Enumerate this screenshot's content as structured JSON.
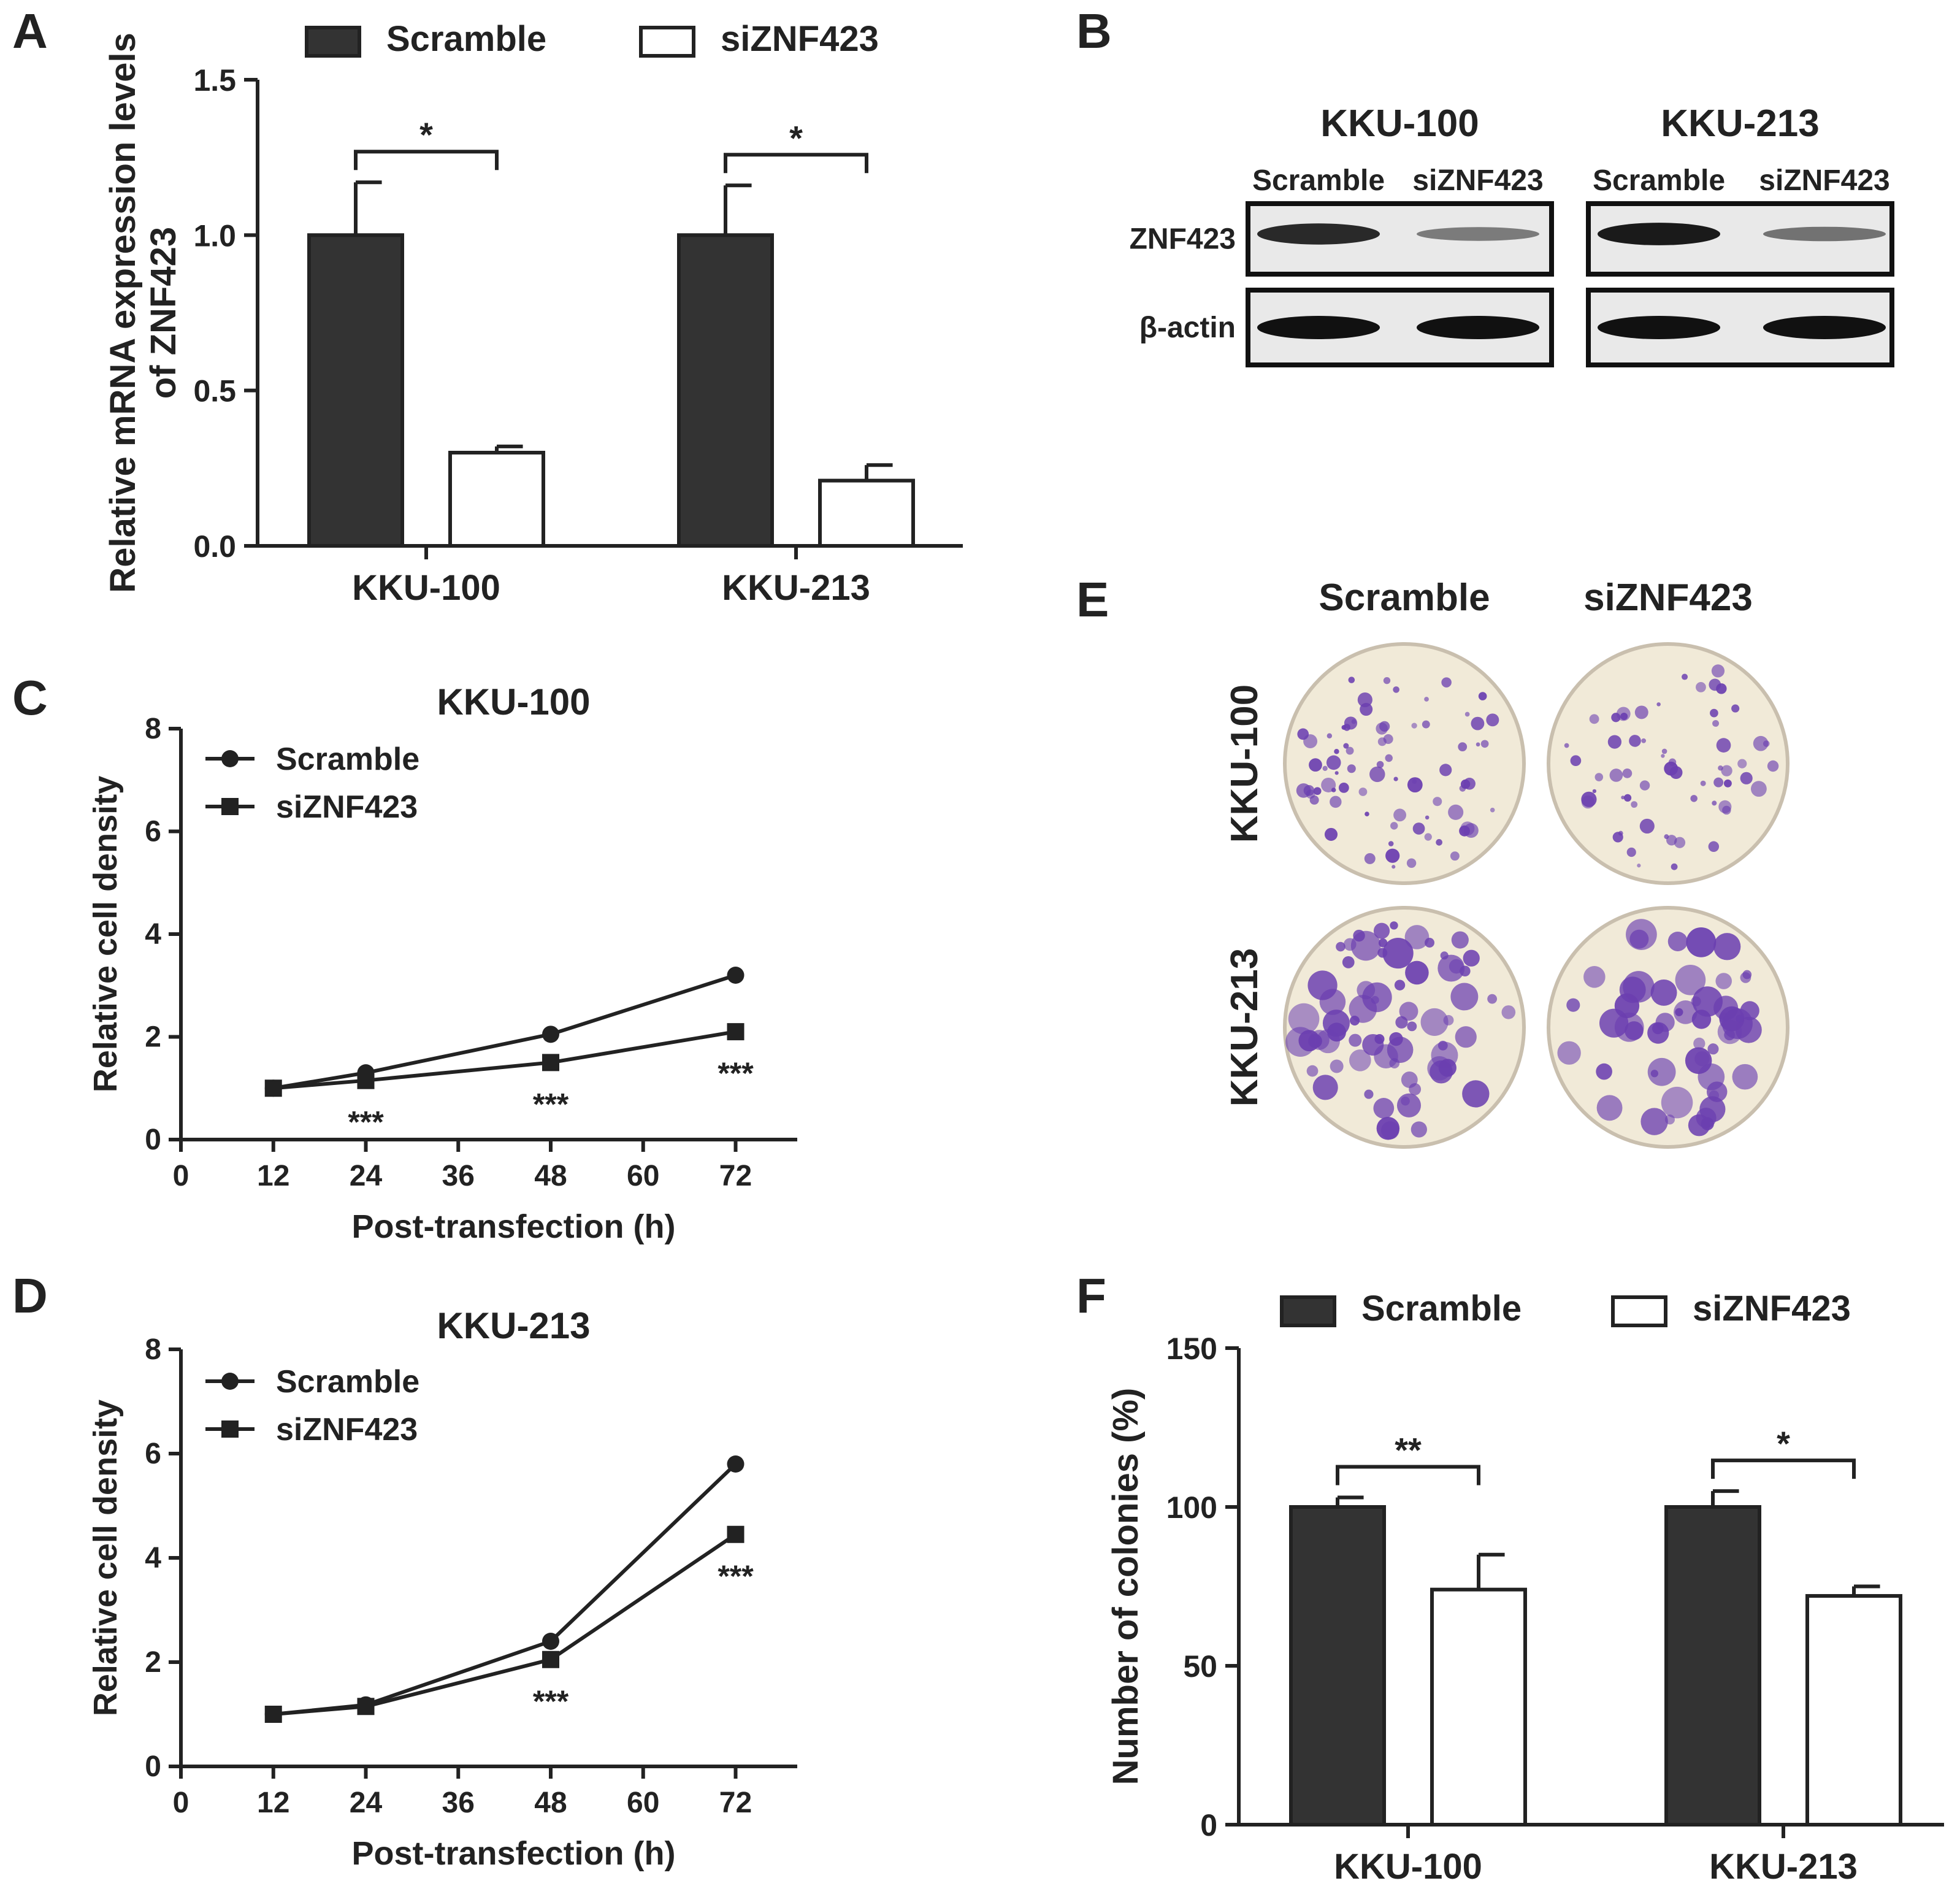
{
  "colors": {
    "dark": "#333333",
    "light": "#ffffff",
    "axis": "#222222",
    "stain": "#6b3fb0",
    "plate": "#f1ead8"
  },
  "panels": {
    "A": {
      "letter": "A",
      "chart_data": {
        "type": "bar",
        "categories": [
          "KKU-100",
          "KKU-213"
        ],
        "series": [
          {
            "name": "Scramble",
            "values": [
              1.0,
              1.0
            ],
            "errors": [
              0.17,
              0.16
            ]
          },
          {
            "name": "siZNF423",
            "values": [
              0.3,
              0.21
            ],
            "errors": [
              0.02,
              0.05
            ]
          }
        ],
        "ylabel_lines": [
          "Relative mRNA expression levels",
          "of ZNF423"
        ],
        "ylim": [
          0,
          1.5
        ],
        "yticks": [
          0.0,
          0.5,
          1.0,
          1.5
        ],
        "ytick_labels": [
          "0.0",
          "0.5",
          "1.0",
          "1.5"
        ],
        "significance": [
          "*",
          "*"
        ],
        "legend": [
          "Scramble",
          "siZNF423"
        ]
      }
    },
    "B": {
      "letter": "B",
      "cell_lines": [
        "KKU-100",
        "KKU-213"
      ],
      "lanes": [
        "Scramble",
        "siZNF423",
        "Scramble",
        "siZNF423"
      ],
      "proteins": [
        "ZNF423",
        "β-actin"
      ],
      "band_intensity": {
        "ZNF423": [
          0.85,
          0.35,
          0.95,
          0.4
        ],
        "β-actin": [
          1.0,
          1.0,
          1.0,
          1.0
        ]
      }
    },
    "C": {
      "letter": "C",
      "chart_data": {
        "type": "line",
        "title": "KKU-100",
        "x": [
          12,
          24,
          48,
          72
        ],
        "series": [
          {
            "name": "Scramble",
            "marker": "circle",
            "values": [
              1.0,
              1.3,
              2.05,
              3.2
            ]
          },
          {
            "name": "siZNF423",
            "marker": "square",
            "values": [
              1.0,
              1.15,
              1.5,
              2.1
            ]
          }
        ],
        "xlabel": "Post-transfection (h)",
        "ylabel": "Relative cell density",
        "xlim": [
          0,
          80
        ],
        "xticks": [
          0,
          12,
          24,
          36,
          48,
          60,
          72
        ],
        "ylim": [
          0,
          8
        ],
        "yticks": [
          0,
          2,
          4,
          6,
          8
        ],
        "annotations": [
          {
            "x": 24,
            "text": "***"
          },
          {
            "x": 48,
            "text": "***"
          },
          {
            "x": 72,
            "text": "***"
          }
        ],
        "legend": [
          "Scramble",
          "siZNF423"
        ]
      }
    },
    "D": {
      "letter": "D",
      "chart_data": {
        "type": "line",
        "title": "KKU-213",
        "x": [
          12,
          24,
          48,
          72
        ],
        "series": [
          {
            "name": "Scramble",
            "marker": "circle",
            "values": [
              1.0,
              1.18,
              2.4,
              5.8
            ]
          },
          {
            "name": "siZNF423",
            "marker": "square",
            "values": [
              1.0,
              1.15,
              2.05,
              4.45
            ]
          }
        ],
        "xlabel": "Post-transfection (h)",
        "ylabel": "Relative cell density",
        "xlim": [
          0,
          80
        ],
        "xticks": [
          0,
          12,
          24,
          36,
          48,
          60,
          72
        ],
        "ylim": [
          0,
          8
        ],
        "yticks": [
          0,
          2,
          4,
          6,
          8
        ],
        "annotations": [
          {
            "x": 48,
            "text": "***"
          },
          {
            "x": 72,
            "text": "***"
          }
        ],
        "legend": [
          "Scramble",
          "siZNF423"
        ]
      }
    },
    "E": {
      "letter": "E",
      "columns": [
        "Scramble",
        "siZNF423"
      ],
      "rows": [
        "KKU-100",
        "KKU-213"
      ]
    },
    "F": {
      "letter": "F",
      "chart_data": {
        "type": "bar",
        "categories": [
          "KKU-100",
          "KKU-213"
        ],
        "series": [
          {
            "name": "Scramble",
            "values": [
              100,
              100
            ],
            "errors": [
              3,
              5
            ]
          },
          {
            "name": "siZNF423",
            "values": [
              74,
              72
            ],
            "errors": [
              11,
              3
            ]
          }
        ],
        "ylabel_lines": [
          "Number of colonies (%)"
        ],
        "ylim": [
          0,
          150
        ],
        "yticks": [
          0,
          50,
          100,
          150
        ],
        "ytick_labels": [
          "0",
          "50",
          "100",
          "150"
        ],
        "significance": [
          "**",
          "*"
        ],
        "legend": [
          "Scramble",
          "siZNF423"
        ]
      }
    }
  }
}
